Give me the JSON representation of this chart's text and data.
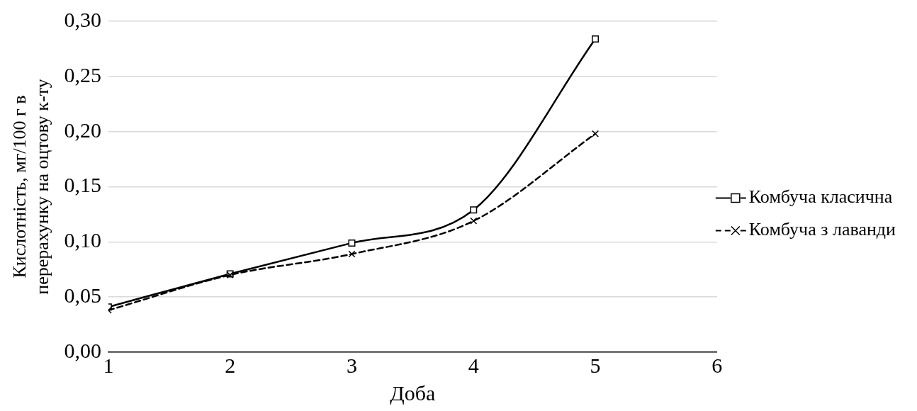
{
  "chart_data": {
    "type": "line",
    "xlabel": "Доба",
    "ylabel": "Кислотність, мг/100 г в перерахунку на оцтову к-ту",
    "x": [
      1,
      2,
      3,
      4,
      5
    ],
    "series": [
      {
        "name": "Комбуча класична",
        "color": "#000000",
        "values": [
          0.041,
          0.071,
          0.099,
          0.129,
          0.284
        ],
        "marker": "square",
        "line_style": "solid"
      },
      {
        "name": "Комбуча з лаванди",
        "color": "#000000",
        "values": [
          0.038,
          0.07,
          0.089,
          0.119,
          0.198
        ],
        "marker": "cross",
        "line_style": "dashed"
      }
    ],
    "xlim": [
      1,
      6
    ],
    "xticks": [
      1,
      2,
      3,
      4,
      5,
      6
    ],
    "ylim": [
      0,
      0.3
    ],
    "yticks": [
      {
        "value": 0,
        "label": "0,00"
      },
      {
        "value": 0.05,
        "label": "0,05"
      },
      {
        "value": 0.1,
        "label": "0,10"
      },
      {
        "value": 0.15,
        "label": "0,15"
      },
      {
        "value": 0.2,
        "label": "0,20"
      },
      {
        "value": 0.25,
        "label": "0,25"
      },
      {
        "value": 0.3,
        "label": "0,30"
      }
    ],
    "grid": "y",
    "legend": "right"
  }
}
